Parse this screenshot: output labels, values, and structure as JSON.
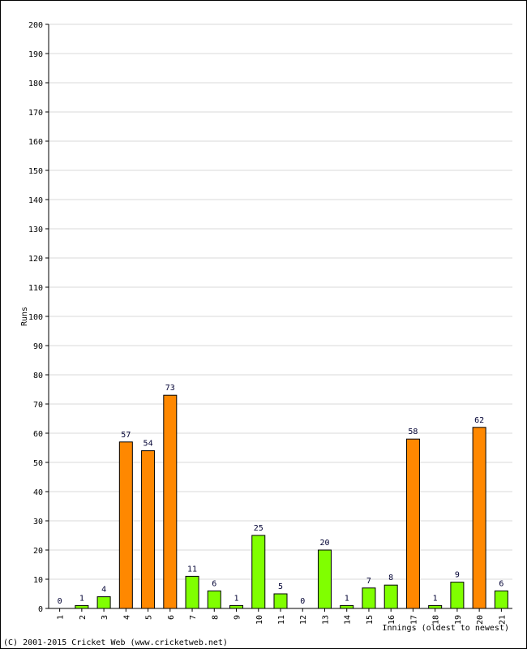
{
  "chart_data": {
    "type": "bar",
    "xlabel": "Innings (oldest to newest)",
    "ylabel": "Runs",
    "ylim": [
      0,
      200
    ],
    "yticks": [
      0,
      10,
      20,
      30,
      40,
      50,
      60,
      70,
      80,
      90,
      100,
      110,
      120,
      130,
      140,
      150,
      160,
      170,
      180,
      190,
      200
    ],
    "categories": [
      "1",
      "2",
      "3",
      "4",
      "5",
      "6",
      "7",
      "8",
      "9",
      "10",
      "11",
      "12",
      "13",
      "14",
      "15",
      "16",
      "17",
      "18",
      "19",
      "20",
      "21"
    ],
    "values": [
      0,
      1,
      4,
      57,
      54,
      73,
      11,
      6,
      1,
      25,
      5,
      0,
      20,
      1,
      7,
      8,
      58,
      1,
      9,
      62,
      6
    ],
    "labels": [
      "0",
      "1",
      "4",
      "57",
      "54",
      "73",
      "11",
      "6",
      "1",
      "25",
      "5",
      "0",
      "20",
      "1",
      "7",
      "8",
      "58",
      "1",
      "9",
      "62",
      "6"
    ],
    "grid": true,
    "colors": {
      "below_50": "#80ff00",
      "fifty_plus": "#ff8800",
      "bar_border": "#000000",
      "grid": "#d9d9d9",
      "label": "#000033"
    }
  },
  "footer": "(C) 2001-2015 Cricket Web (www.cricketweb.net)"
}
